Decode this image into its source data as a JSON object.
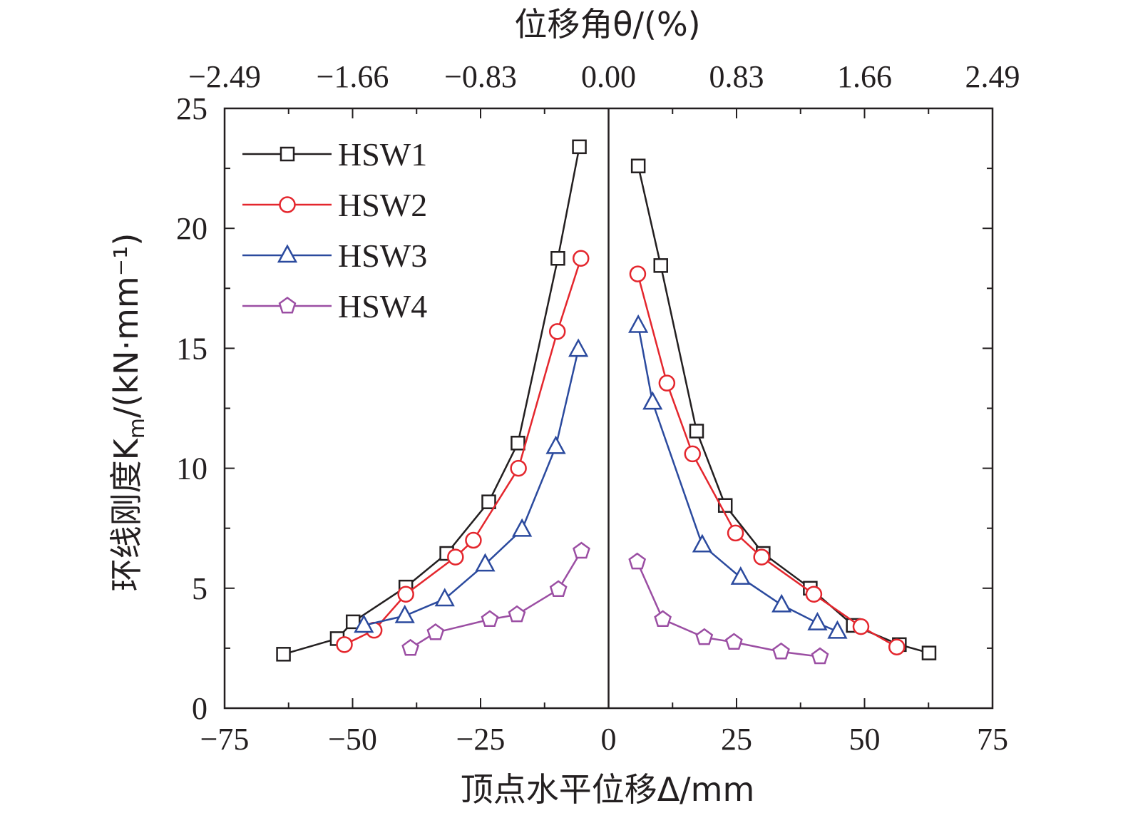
{
  "chart_data": {
    "type": "line",
    "xlabel": "顶点水平位移Δ/mm",
    "ylabel": "环线刚度K_m/(kN·mm⁻¹)",
    "x2label": "位移角θ/(%)",
    "xlim": [
      -75,
      75
    ],
    "ylim": [
      0,
      25
    ],
    "x_ticks": [
      "−75",
      "−50",
      "−25",
      "0",
      "25",
      "50",
      "75"
    ],
    "y_ticks": [
      "0",
      "5",
      "10",
      "15",
      "20",
      "25"
    ],
    "x2_ticks": [
      "−2.49",
      "−1.66",
      "−0.83",
      "0.00",
      "0.83",
      "1.66",
      "2.49"
    ],
    "zero_line": true,
    "grid": false,
    "legend_position": "top-left",
    "series": [
      {
        "name": "HSW1",
        "color": "#231f20",
        "marker": "square",
        "negative": [
          [
            -63.5,
            2.25
          ],
          [
            -53.0,
            2.9
          ],
          [
            -49.9,
            3.6
          ],
          [
            -39.6,
            5.05
          ],
          [
            -31.6,
            6.45
          ],
          [
            -23.4,
            8.6
          ],
          [
            -17.7,
            11.05
          ],
          [
            -9.9,
            18.75
          ],
          [
            -5.7,
            23.4
          ]
        ],
        "positive": [
          [
            5.8,
            22.6
          ],
          [
            10.2,
            18.45
          ],
          [
            17.2,
            11.55
          ],
          [
            22.8,
            8.45
          ],
          [
            30.2,
            6.45
          ],
          [
            39.4,
            5.0
          ],
          [
            47.8,
            3.45
          ],
          [
            56.8,
            2.65
          ],
          [
            62.6,
            2.3
          ]
        ]
      },
      {
        "name": "HSW2",
        "color": "#e4262d",
        "marker": "circle",
        "negative": [
          [
            -51.6,
            2.65
          ],
          [
            -45.8,
            3.25
          ],
          [
            -39.6,
            4.75
          ],
          [
            -29.9,
            6.3
          ],
          [
            -26.4,
            7.0
          ],
          [
            -17.6,
            10.0
          ],
          [
            -10.0,
            15.7
          ],
          [
            -5.4,
            18.75
          ]
        ],
        "positive": [
          [
            5.7,
            18.1
          ],
          [
            11.4,
            13.55
          ],
          [
            16.4,
            10.6
          ],
          [
            24.8,
            7.3
          ],
          [
            29.9,
            6.3
          ],
          [
            40.1,
            4.75
          ],
          [
            49.3,
            3.4
          ],
          [
            56.3,
            2.55
          ]
        ]
      },
      {
        "name": "HSW3",
        "color": "#2b4a9e",
        "marker": "triangle",
        "negative": [
          [
            -47.8,
            3.45
          ],
          [
            -39.8,
            3.85
          ],
          [
            -32.0,
            4.55
          ],
          [
            -24.1,
            6.0
          ],
          [
            -16.9,
            7.45
          ],
          [
            -10.3,
            10.9
          ],
          [
            -5.9,
            14.95
          ]
        ],
        "positive": [
          [
            5.8,
            15.95
          ],
          [
            8.6,
            12.75
          ],
          [
            18.3,
            6.8
          ],
          [
            25.8,
            5.45
          ],
          [
            33.8,
            4.3
          ],
          [
            40.8,
            3.55
          ],
          [
            44.7,
            3.2
          ]
        ]
      },
      {
        "name": "HSW4",
        "color": "#9b4ea3",
        "marker": "pentagon",
        "negative": [
          [
            -38.7,
            2.5
          ],
          [
            -33.8,
            3.15
          ],
          [
            -23.2,
            3.7
          ],
          [
            -17.9,
            3.9
          ],
          [
            -9.8,
            4.95
          ],
          [
            -5.3,
            6.55
          ]
        ],
        "positive": [
          [
            5.6,
            6.1
          ],
          [
            10.6,
            3.7
          ],
          [
            18.7,
            2.95
          ],
          [
            24.5,
            2.75
          ],
          [
            33.7,
            2.35
          ],
          [
            41.3,
            2.15
          ]
        ]
      }
    ]
  }
}
